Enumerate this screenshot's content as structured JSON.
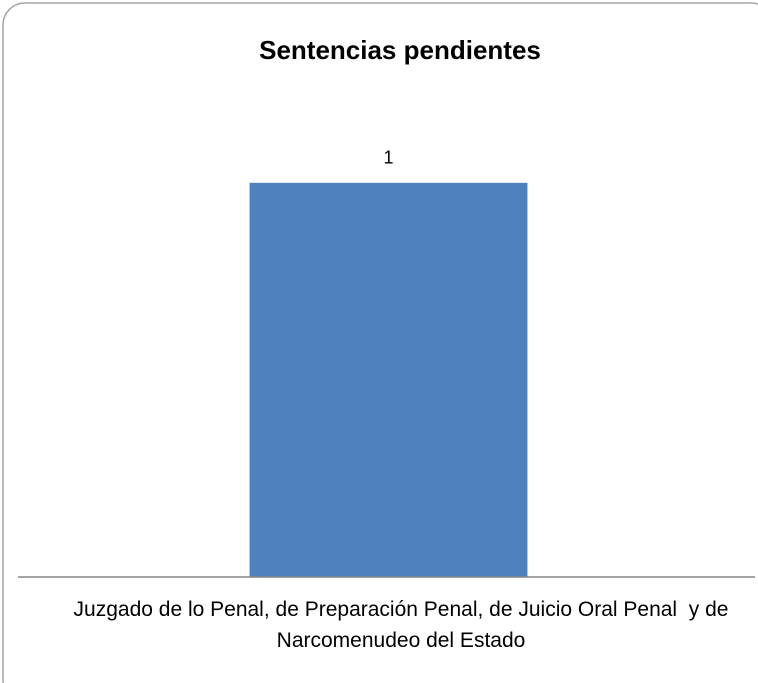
{
  "chart_data": {
    "type": "bar",
    "title": "Sentencias pendientes",
    "categories": [
      "Juzgado de lo Penal, de Preparación Penal, de Juicio Oral Penal  y de Narcomenudeo del Estado"
    ],
    "values": [
      1
    ],
    "color": "#4f81bd",
    "ylim": [
      0,
      1.2
    ]
  }
}
